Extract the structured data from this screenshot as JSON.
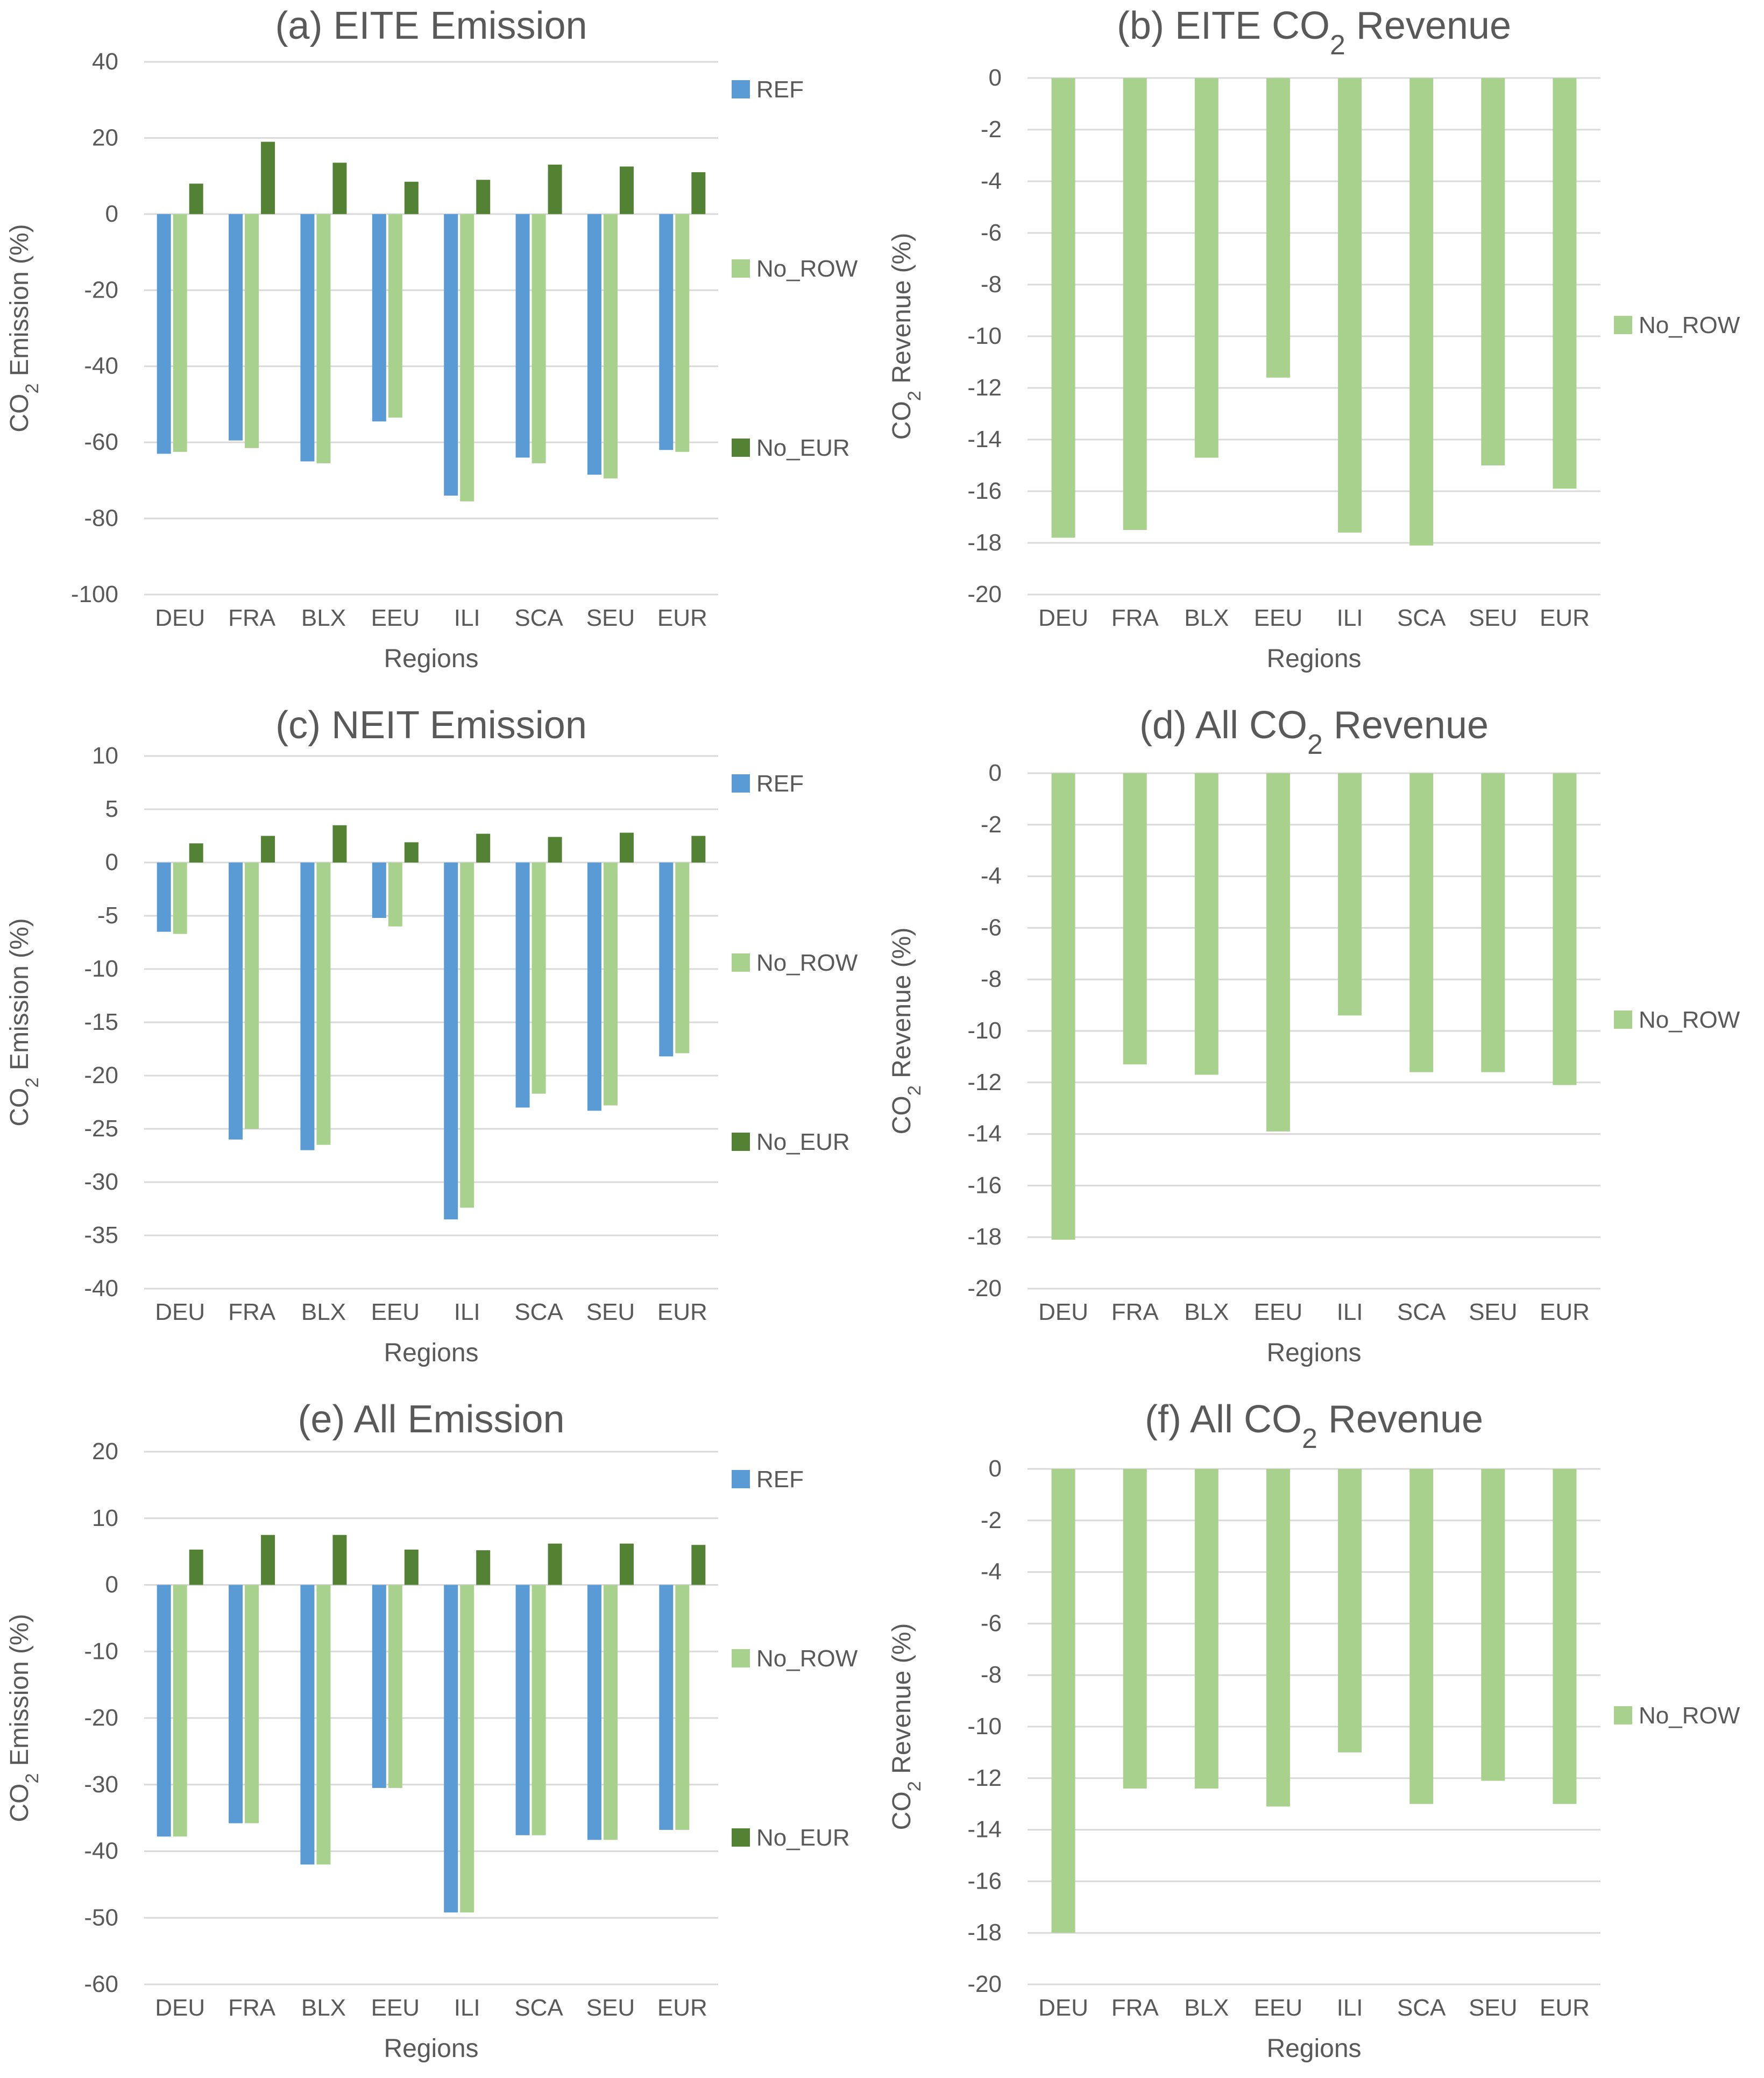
{
  "colors": {
    "REF": "#5b9bd5",
    "No_ROW": "#a9d18e",
    "No_EUR": "#548235",
    "grid": "#d9d9d9",
    "text": "#595959"
  },
  "chart_data": [
    {
      "panel": "a",
      "type": "bar",
      "title": "(a) EITE Emission",
      "ylabel": "CO2 Emission (%)",
      "xlabel": "Regions",
      "ylim": [
        -100,
        40
      ],
      "ystep": 20,
      "grid": true,
      "legend": "right",
      "categories": [
        "DEU",
        "FRA",
        "BLX",
        "EEU",
        "ILI",
        "SCA",
        "SEU",
        "EUR"
      ],
      "series": [
        {
          "name": "REF",
          "values": [
            -63,
            -59.5,
            -65,
            -54.5,
            -74,
            -64,
            -68.5,
            -62
          ]
        },
        {
          "name": "No_ROW",
          "values": [
            -62.5,
            -61.5,
            -65.5,
            -53.5,
            -75.5,
            -65.5,
            -69.5,
            -62.5
          ]
        },
        {
          "name": "No_EUR",
          "values": [
            8,
            19,
            13.5,
            8.5,
            9,
            13,
            12.5,
            11
          ]
        }
      ]
    },
    {
      "panel": "b",
      "type": "bar",
      "title": "(b) EITE CO2 Revenue",
      "ylabel": "CO2 Revenue (%)",
      "xlabel": "Regions",
      "ylim": [
        -20,
        0
      ],
      "ystep": 2,
      "grid": true,
      "legend": "right",
      "categories": [
        "DEU",
        "FRA",
        "BLX",
        "EEU",
        "ILI",
        "SCA",
        "SEU",
        "EUR"
      ],
      "series": [
        {
          "name": "No_ROW",
          "values": [
            -17.8,
            -17.5,
            -14.7,
            -11.6,
            -17.6,
            -18.1,
            -15,
            -15.9
          ]
        }
      ]
    },
    {
      "panel": "c",
      "type": "bar",
      "title": "(c) NEIT Emission",
      "ylabel": "CO2 Emission (%)",
      "xlabel": "Regions",
      "ylim": [
        -40,
        10
      ],
      "ystep": 5,
      "grid": true,
      "legend": "right",
      "categories": [
        "DEU",
        "FRA",
        "BLX",
        "EEU",
        "ILI",
        "SCA",
        "SEU",
        "EUR"
      ],
      "series": [
        {
          "name": "REF",
          "values": [
            -6.5,
            -26,
            -27,
            -5.2,
            -33.5,
            -23,
            -23.3,
            -18.2
          ]
        },
        {
          "name": "No_ROW",
          "values": [
            -6.7,
            -25,
            -26.5,
            -6,
            -32.4,
            -21.7,
            -22.8,
            -17.9
          ]
        },
        {
          "name": "No_EUR",
          "values": [
            1.8,
            2.5,
            3.5,
            1.9,
            2.7,
            2.4,
            2.8,
            2.5
          ]
        }
      ]
    },
    {
      "panel": "d",
      "type": "bar",
      "title": "(d) All CO2 Revenue",
      "ylabel": "CO2 Revenue (%)",
      "xlabel": "Regions",
      "ylim": [
        -20,
        0
      ],
      "ystep": 2,
      "grid": true,
      "legend": "right",
      "categories": [
        "DEU",
        "FRA",
        "BLX",
        "EEU",
        "ILI",
        "SCA",
        "SEU",
        "EUR"
      ],
      "series": [
        {
          "name": "No_ROW",
          "values": [
            -18.1,
            -11.3,
            -11.7,
            -13.9,
            -9.4,
            -11.6,
            -11.6,
            -12.1
          ]
        }
      ]
    },
    {
      "panel": "e",
      "type": "bar",
      "title": "(e) All Emission",
      "ylabel": "CO2 Emission (%)",
      "xlabel": "Regions",
      "ylim": [
        -60,
        20
      ],
      "ystep": 10,
      "grid": true,
      "legend": "right",
      "categories": [
        "DEU",
        "FRA",
        "BLX",
        "EEU",
        "ILI",
        "SCA",
        "SEU",
        "EUR"
      ],
      "series": [
        {
          "name": "REF",
          "values": [
            -37.8,
            -35.8,
            -42,
            -30.5,
            -49.2,
            -37.6,
            -38.3,
            -36.8
          ]
        },
        {
          "name": "No_ROW",
          "values": [
            -37.8,
            -35.8,
            -42,
            -30.5,
            -49.2,
            -37.6,
            -38.3,
            -36.8
          ]
        },
        {
          "name": "No_EUR",
          "values": [
            5.3,
            7.5,
            7.5,
            5.3,
            5.2,
            6.2,
            6.2,
            6
          ]
        }
      ]
    },
    {
      "panel": "f",
      "type": "bar",
      "title": "(f) All CO2 Revenue",
      "ylabel": "CO2 Revenue (%)",
      "xlabel": "Regions",
      "ylim": [
        -20,
        0
      ],
      "ystep": 2,
      "grid": true,
      "legend": "right",
      "categories": [
        "DEU",
        "FRA",
        "BLX",
        "EEU",
        "ILI",
        "SCA",
        "SEU",
        "EUR"
      ],
      "series": [
        {
          "name": "No_ROW",
          "values": [
            -18,
            -12.4,
            -12.4,
            -13.1,
            -11,
            -13,
            -12.1,
            -13
          ]
        }
      ]
    }
  ]
}
